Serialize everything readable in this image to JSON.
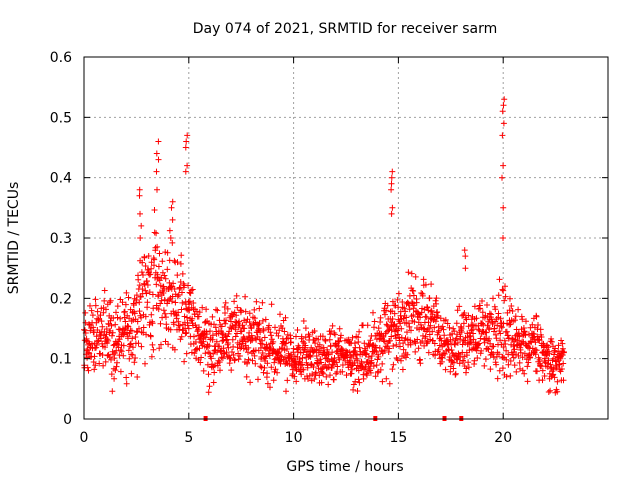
{
  "chart_data": {
    "type": "scatter",
    "title": "Day 074 of 2021, SRMTID for receiver sarm",
    "xlabel": "GPS time / hours",
    "ylabel": "SRMTID / TECUs",
    "xlim": [
      0,
      25
    ],
    "ylim": [
      0,
      0.6
    ],
    "x_ticks": [
      0,
      5,
      10,
      15,
      20
    ],
    "x_tick_labels": [
      "0",
      "5",
      "10",
      "15",
      "20"
    ],
    "y_ticks": [
      0,
      0.1,
      0.2,
      0.3,
      0.4,
      0.5,
      0.6
    ],
    "y_tick_labels": [
      "0",
      "0.1",
      "0.2",
      "0.3",
      "0.4",
      "0.5",
      "0.6"
    ],
    "grid": true,
    "marker": "plus",
    "series": [
      {
        "name": "SRMTID",
        "color": "#ff0000",
        "envelope_x": [
          0,
          0.5,
          1,
          1.5,
          2,
          2.5,
          3,
          3.5,
          4,
          4.5,
          5,
          5.5,
          6,
          6.5,
          7,
          7.5,
          8,
          8.5,
          9,
          9.5,
          10,
          10.5,
          11,
          11.5,
          12,
          12.5,
          13,
          13.5,
          14,
          14.5,
          15,
          15.5,
          16,
          16.5,
          17,
          17.5,
          18,
          18.5,
          19,
          19.5,
          20,
          20.5,
          21,
          21.5,
          22,
          22.5,
          22.9
        ],
        "envelope_center": [
          0.12,
          0.13,
          0.15,
          0.12,
          0.14,
          0.17,
          0.2,
          0.22,
          0.21,
          0.19,
          0.17,
          0.14,
          0.12,
          0.13,
          0.14,
          0.14,
          0.13,
          0.13,
          0.12,
          0.11,
          0.1,
          0.11,
          0.1,
          0.1,
          0.11,
          0.11,
          0.1,
          0.11,
          0.12,
          0.14,
          0.15,
          0.16,
          0.17,
          0.16,
          0.14,
          0.12,
          0.12,
          0.13,
          0.14,
          0.14,
          0.15,
          0.13,
          0.12,
          0.12,
          0.1,
          0.08,
          0.1
        ],
        "envelope_spread": [
          0.05,
          0.05,
          0.06,
          0.06,
          0.07,
          0.08,
          0.09,
          0.09,
          0.08,
          0.07,
          0.06,
          0.05,
          0.05,
          0.05,
          0.05,
          0.05,
          0.05,
          0.05,
          0.05,
          0.05,
          0.04,
          0.04,
          0.04,
          0.04,
          0.04,
          0.04,
          0.04,
          0.04,
          0.05,
          0.06,
          0.06,
          0.06,
          0.06,
          0.06,
          0.05,
          0.05,
          0.05,
          0.05,
          0.05,
          0.05,
          0.06,
          0.06,
          0.05,
          0.05,
          0.04,
          0.04,
          0.04
        ],
        "peaks": [
          {
            "x": 2.7,
            "values": [
              0.3,
              0.32,
              0.34,
              0.37,
              0.38
            ]
          },
          {
            "x": 3.5,
            "values": [
              0.38,
              0.41,
              0.43,
              0.44,
              0.46
            ]
          },
          {
            "x": 4.2,
            "values": [
              0.3,
              0.33,
              0.35,
              0.36
            ]
          },
          {
            "x": 4.9,
            "values": [
              0.41,
              0.42,
              0.45,
              0.46,
              0.47
            ]
          },
          {
            "x": 14.7,
            "values": [
              0.34,
              0.35,
              0.38,
              0.39,
              0.4,
              0.41
            ]
          },
          {
            "x": 18.2,
            "values": [
              0.25,
              0.27,
              0.28
            ]
          },
          {
            "x": 20.0,
            "values": [
              0.3,
              0.35,
              0.4,
              0.42,
              0.47,
              0.49,
              0.51,
              0.52,
              0.53
            ]
          }
        ],
        "baseline_markers_x": [
          5.8,
          13.9,
          17.2,
          18.0
        ]
      }
    ]
  }
}
